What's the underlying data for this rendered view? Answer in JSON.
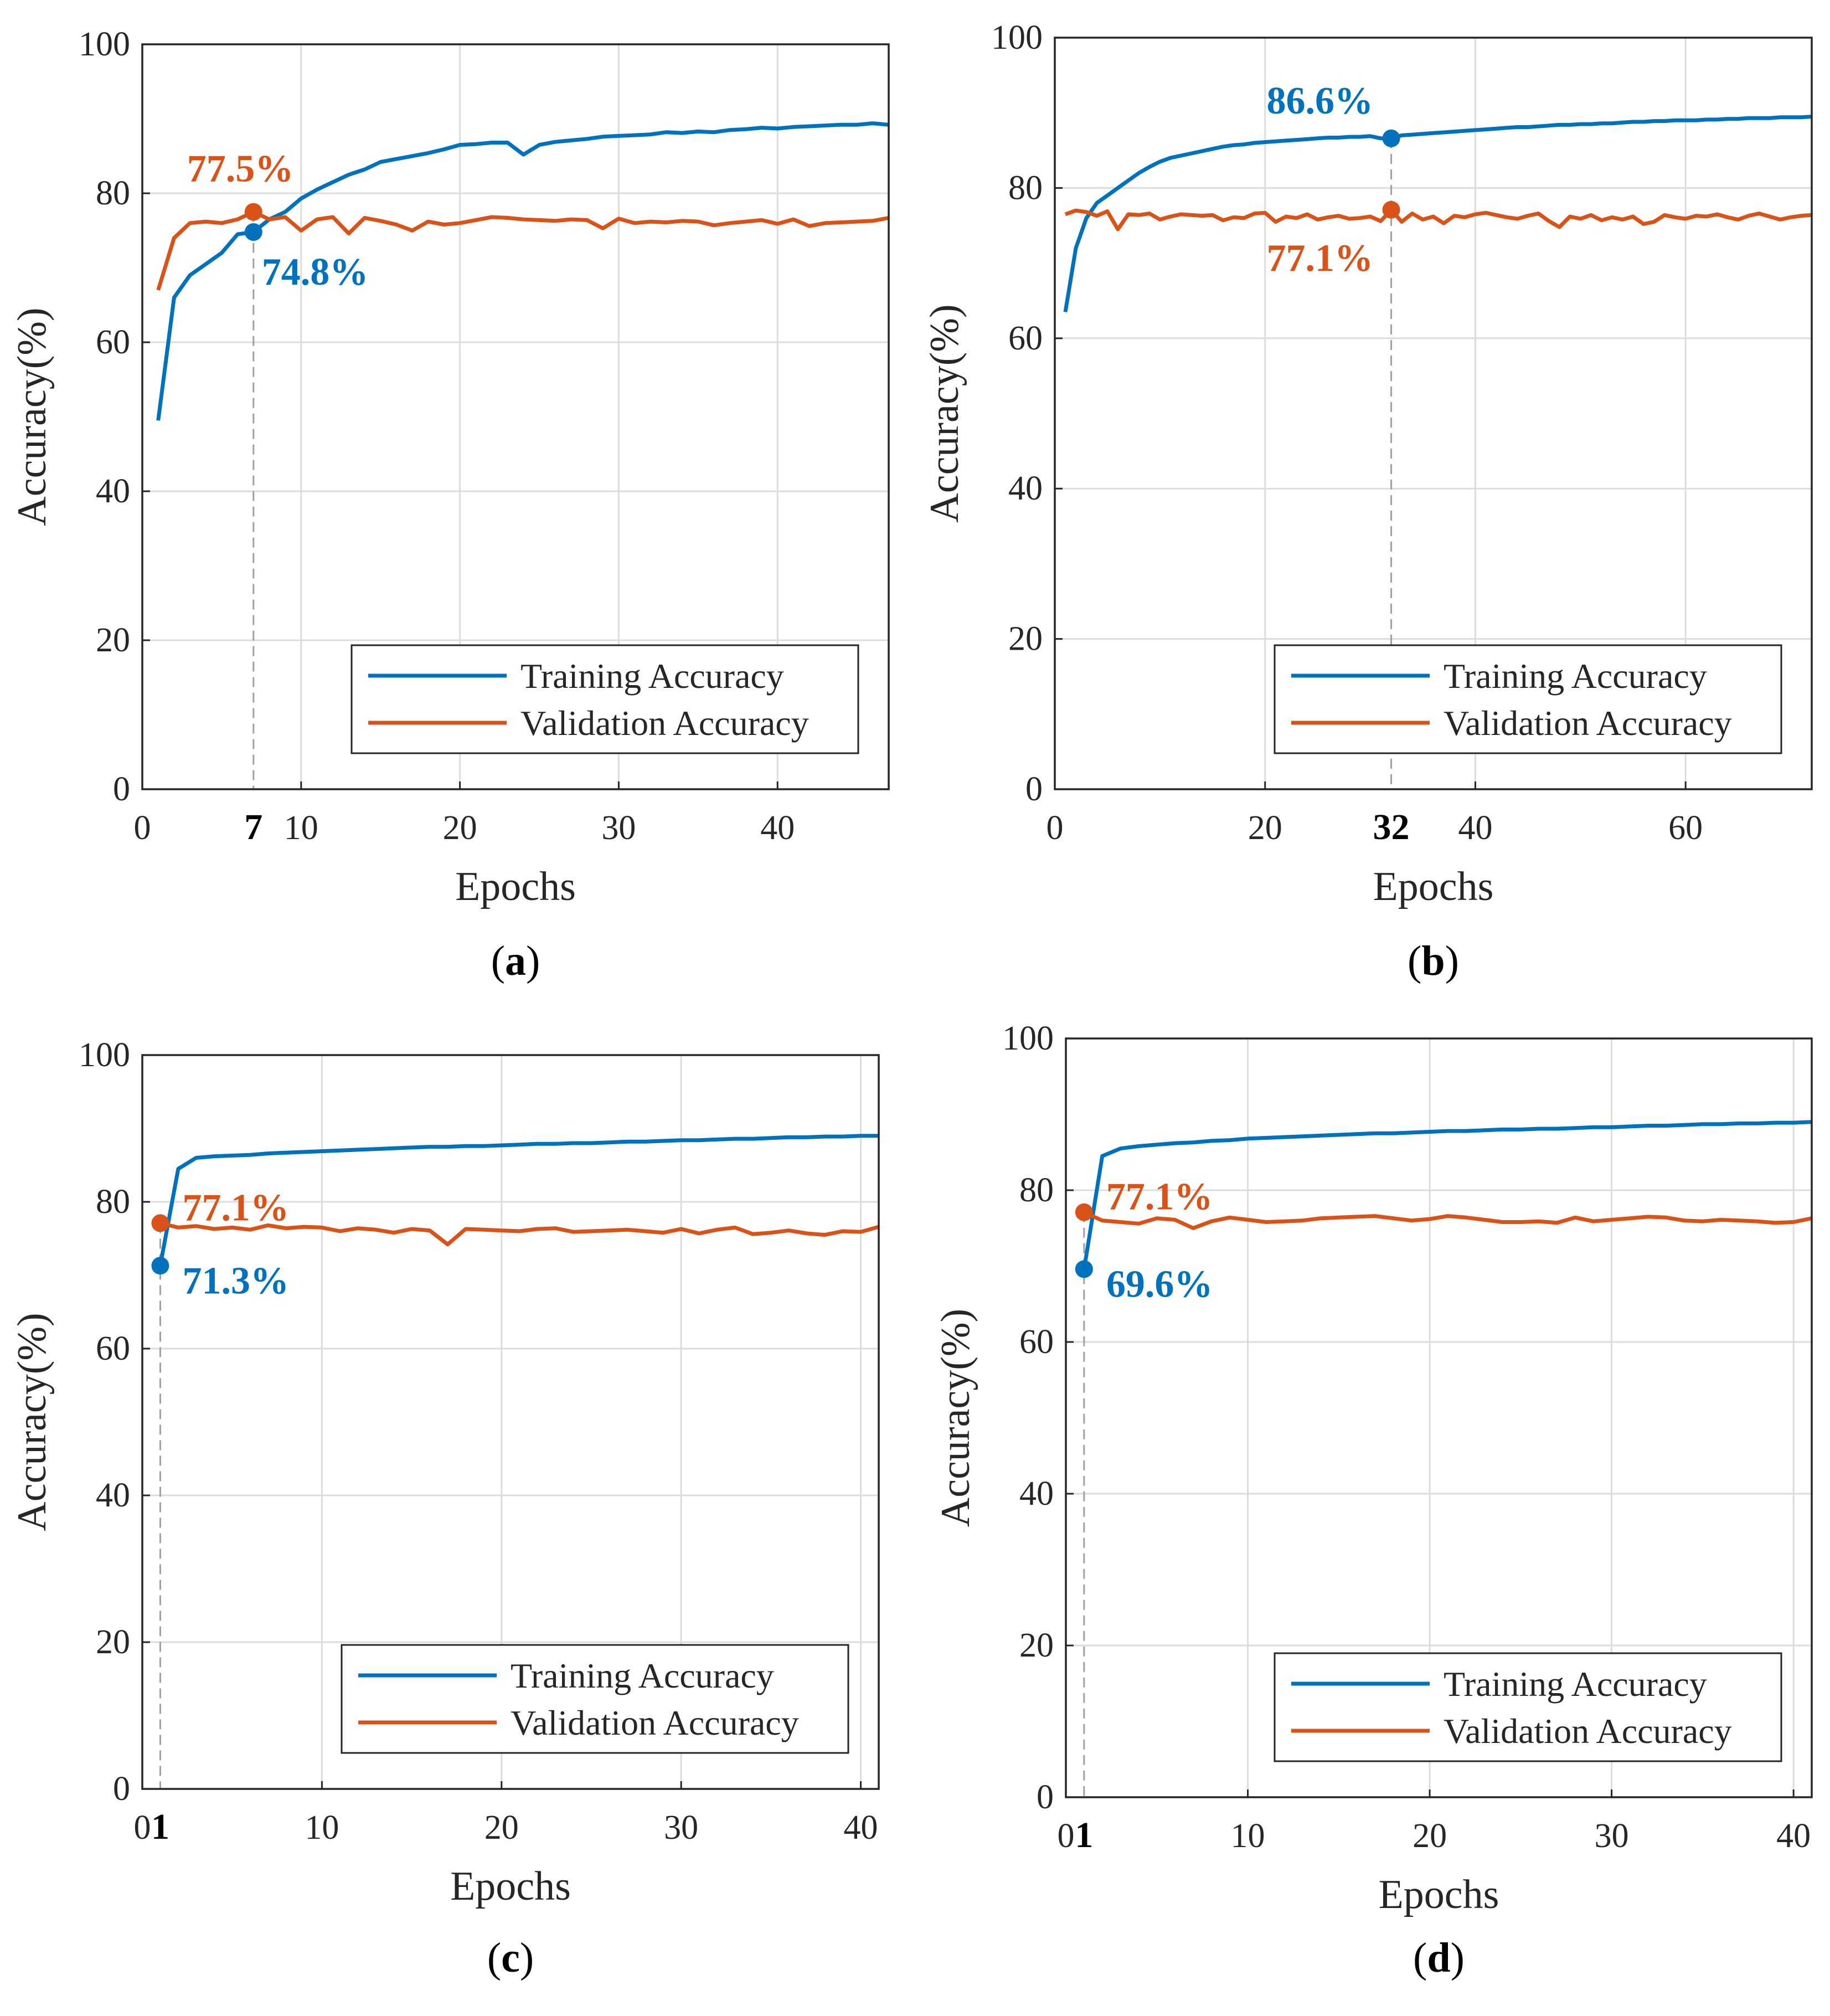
{
  "figure": {
    "colors": {
      "training": "#0072BD",
      "validation": "#D95319",
      "grid": "#DCDCDC",
      "axis": "#262626",
      "marker_line": "#A0A0A0"
    }
  },
  "chart_data": [
    {
      "type": "line",
      "panel_label": "a",
      "xlabel": "Epochs",
      "ylabel": "Accuracy(%)",
      "xlim": [
        0,
        47
      ],
      "ylim": [
        0,
        100
      ],
      "xticks": [
        0,
        10,
        20,
        30,
        40
      ],
      "yticks": [
        0,
        20,
        40,
        60,
        80,
        100
      ],
      "grid": true,
      "legend_position": "bottom-right",
      "highlight": {
        "epoch": 7,
        "epoch_label": "7",
        "training": {
          "value": 74.8,
          "label": "74.8%"
        },
        "validation": {
          "value": 77.5,
          "label": "77.5%"
        }
      },
      "series": [
        {
          "name": "Training Accuracy",
          "x": [
            1,
            2,
            3,
            4,
            5,
            6,
            7,
            8,
            9,
            10,
            11,
            12,
            13,
            14,
            15,
            16,
            17,
            18,
            19,
            20,
            21,
            22,
            23,
            24,
            25,
            26,
            27,
            28,
            29,
            30,
            31,
            32,
            33,
            34,
            35,
            36,
            37,
            38,
            39,
            40,
            41,
            42,
            43,
            44,
            45,
            46,
            47
          ],
          "values": [
            49.5,
            66,
            69,
            70.5,
            72,
            74.5,
            74.8,
            76.5,
            77.5,
            79.3,
            80.5,
            81.5,
            82.5,
            83.2,
            84.2,
            84.6,
            85,
            85.4,
            85.9,
            86.5,
            86.6,
            86.8,
            86.8,
            85.2,
            86.5,
            86.9,
            87.1,
            87.3,
            87.6,
            87.7,
            87.8,
            87.9,
            88.2,
            88.1,
            88.3,
            88.2,
            88.5,
            88.6,
            88.8,
            88.7,
            88.9,
            89,
            89.1,
            89.2,
            89.2,
            89.4,
            89.2
          ]
        },
        {
          "name": "Validation Accuracy",
          "x": [
            1,
            2,
            3,
            4,
            5,
            6,
            7,
            8,
            9,
            10,
            11,
            12,
            13,
            14,
            15,
            16,
            17,
            18,
            19,
            20,
            21,
            22,
            23,
            24,
            25,
            26,
            27,
            28,
            29,
            30,
            31,
            32,
            33,
            34,
            35,
            36,
            37,
            38,
            39,
            40,
            41,
            42,
            43,
            44,
            45,
            46,
            47
          ],
          "values": [
            67,
            74,
            76,
            76.2,
            76,
            76.5,
            77.5,
            76.5,
            76.8,
            75,
            76.5,
            76.8,
            74.6,
            76.7,
            76.3,
            75.8,
            75,
            76.2,
            75.8,
            76,
            76.4,
            76.8,
            76.7,
            76.5,
            76.4,
            76.3,
            76.5,
            76.4,
            75.3,
            76.6,
            76,
            76.2,
            76.1,
            76.3,
            76.2,
            75.7,
            76,
            76.2,
            76.4,
            75.9,
            76.5,
            75.6,
            76,
            76.1,
            76.2,
            76.3,
            76.7
          ]
        }
      ]
    },
    {
      "type": "line",
      "panel_label": "b",
      "xlabel": "Epochs",
      "ylabel": "Accuracy(%)",
      "xlim": [
        0,
        72
      ],
      "ylim": [
        0,
        100
      ],
      "xticks": [
        0,
        20,
        40,
        60
      ],
      "yticks": [
        0,
        20,
        40,
        60,
        80,
        100
      ],
      "grid": true,
      "legend_position": "bottom-right",
      "highlight": {
        "epoch": 32,
        "epoch_label": "32",
        "training": {
          "value": 86.6,
          "label": "86.6%"
        },
        "validation": {
          "value": 77.1,
          "label": "77.1%"
        }
      },
      "series": [
        {
          "name": "Training Accuracy",
          "x": [
            1,
            2,
            3,
            4,
            5,
            6,
            7,
            8,
            9,
            10,
            11,
            12,
            13,
            14,
            15,
            16,
            17,
            18,
            19,
            20,
            21,
            22,
            23,
            24,
            25,
            26,
            27,
            28,
            29,
            30,
            31,
            32,
            33,
            34,
            35,
            36,
            37,
            38,
            39,
            40,
            41,
            42,
            43,
            44,
            45,
            46,
            47,
            48,
            49,
            50,
            51,
            52,
            53,
            54,
            55,
            56,
            57,
            58,
            59,
            60,
            61,
            62,
            63,
            64,
            65,
            66,
            67,
            68,
            69,
            70,
            71,
            72
          ],
          "values": [
            63.5,
            72,
            76,
            78,
            79,
            80,
            81,
            82,
            82.8,
            83.5,
            84,
            84.3,
            84.6,
            84.9,
            85.2,
            85.5,
            85.7,
            85.8,
            86,
            86.1,
            86.2,
            86.3,
            86.4,
            86.5,
            86.6,
            86.7,
            86.7,
            86.8,
            86.8,
            86.9,
            86.6,
            86.6,
            87,
            87.1,
            87.2,
            87.3,
            87.4,
            87.5,
            87.6,
            87.7,
            87.8,
            87.9,
            88,
            88.1,
            88.1,
            88.2,
            88.3,
            88.4,
            88.4,
            88.5,
            88.5,
            88.6,
            88.6,
            88.7,
            88.8,
            88.8,
            88.9,
            88.9,
            89,
            89,
            89,
            89.1,
            89.1,
            89.2,
            89.2,
            89.3,
            89.3,
            89.3,
            89.4,
            89.4,
            89.4,
            89.5
          ]
        },
        {
          "name": "Validation Accuracy",
          "x": [
            1,
            2,
            3,
            4,
            5,
            6,
            7,
            8,
            9,
            10,
            11,
            12,
            13,
            14,
            15,
            16,
            17,
            18,
            19,
            20,
            21,
            22,
            23,
            24,
            25,
            26,
            27,
            28,
            29,
            30,
            31,
            32,
            33,
            34,
            35,
            36,
            37,
            38,
            39,
            40,
            41,
            42,
            43,
            44,
            45,
            46,
            47,
            48,
            49,
            50,
            51,
            52,
            53,
            54,
            55,
            56,
            57,
            58,
            59,
            60,
            61,
            62,
            63,
            64,
            65,
            66,
            67,
            68,
            69,
            70,
            71,
            72
          ],
          "values": [
            76.5,
            77,
            76.8,
            76.3,
            76.9,
            74.5,
            76.5,
            76.4,
            76.6,
            75.8,
            76.2,
            76.5,
            76.4,
            76.3,
            76.4,
            75.7,
            76.1,
            76,
            76.6,
            76.7,
            75.5,
            76.2,
            76,
            76.5,
            75.8,
            76.1,
            76.3,
            75.9,
            76,
            76.2,
            75.6,
            77.1,
            75.5,
            76.6,
            75.8,
            76.2,
            75.3,
            76.3,
            76.1,
            76.5,
            76.7,
            76.4,
            76.1,
            75.9,
            76.3,
            76.6,
            75.6,
            74.8,
            76.2,
            75.9,
            76.4,
            75.7,
            76.1,
            75.8,
            76.2,
            75.2,
            75.5,
            76.4,
            76.1,
            75.9,
            76.3,
            76.2,
            76.5,
            76.1,
            75.8,
            76.3,
            76.6,
            76.2,
            75.8,
            76.1,
            76.3,
            76.4
          ]
        }
      ]
    },
    {
      "type": "line",
      "panel_label": "c",
      "xlabel": "Epochs",
      "ylabel": "Accuracy(%)",
      "xlim": [
        0,
        41
      ],
      "ylim": [
        0,
        100
      ],
      "xticks": [
        0,
        10,
        20,
        30,
        40
      ],
      "yticks": [
        0,
        20,
        40,
        60,
        80,
        100
      ],
      "grid": true,
      "legend_position": "bottom-right",
      "highlight": {
        "epoch": 1,
        "epoch_label": "1",
        "training": {
          "value": 71.3,
          "label": "71.3%"
        },
        "validation": {
          "value": 77.1,
          "label": "77.1%"
        }
      },
      "series": [
        {
          "name": "Training Accuracy",
          "x": [
            1,
            2,
            3,
            4,
            5,
            6,
            7,
            8,
            9,
            10,
            11,
            12,
            13,
            14,
            15,
            16,
            17,
            18,
            19,
            20,
            21,
            22,
            23,
            24,
            25,
            26,
            27,
            28,
            29,
            30,
            31,
            32,
            33,
            34,
            35,
            36,
            37,
            38,
            39,
            40,
            41
          ],
          "values": [
            71.3,
            84.5,
            86,
            86.2,
            86.3,
            86.4,
            86.6,
            86.7,
            86.8,
            86.9,
            87,
            87.1,
            87.2,
            87.3,
            87.4,
            87.5,
            87.5,
            87.6,
            87.6,
            87.7,
            87.8,
            87.9,
            87.9,
            88,
            88,
            88.1,
            88.2,
            88.2,
            88.3,
            88.4,
            88.4,
            88.5,
            88.6,
            88.6,
            88.7,
            88.8,
            88.8,
            88.9,
            88.9,
            89,
            89
          ]
        },
        {
          "name": "Validation Accuracy",
          "x": [
            1,
            2,
            3,
            4,
            5,
            6,
            7,
            8,
            9,
            10,
            11,
            12,
            13,
            14,
            15,
            16,
            17,
            18,
            19,
            20,
            21,
            22,
            23,
            24,
            25,
            26,
            27,
            28,
            29,
            30,
            31,
            32,
            33,
            34,
            35,
            36,
            37,
            38,
            39,
            40,
            41
          ],
          "values": [
            77.1,
            76.5,
            76.7,
            76.3,
            76.5,
            76.2,
            76.8,
            76.4,
            76.6,
            76.5,
            76,
            76.4,
            76.2,
            75.8,
            76.3,
            76.1,
            74.2,
            76.3,
            76.2,
            76.1,
            76,
            76.3,
            76.4,
            75.9,
            76,
            76.1,
            76.2,
            76,
            75.8,
            76.3,
            75.7,
            76.2,
            76.5,
            75.6,
            75.8,
            76.1,
            75.7,
            75.5,
            76,
            75.9,
            76.6
          ]
        }
      ]
    },
    {
      "type": "line",
      "panel_label": "d",
      "xlabel": "Epochs",
      "ylabel": "Accuracy(%)",
      "xlim": [
        0,
        41
      ],
      "ylim": [
        0,
        100
      ],
      "xticks": [
        0,
        10,
        20,
        30,
        40
      ],
      "yticks": [
        0,
        20,
        40,
        60,
        80,
        100
      ],
      "grid": true,
      "legend_position": "bottom-right",
      "highlight": {
        "epoch": 1,
        "epoch_label": "1",
        "training": {
          "value": 69.6,
          "label": "69.6%"
        },
        "validation": {
          "value": 77.1,
          "label": "77.1%"
        }
      },
      "series": [
        {
          "name": "Training Accuracy",
          "x": [
            1,
            2,
            3,
            4,
            5,
            6,
            7,
            8,
            9,
            10,
            11,
            12,
            13,
            14,
            15,
            16,
            17,
            18,
            19,
            20,
            21,
            22,
            23,
            24,
            25,
            26,
            27,
            28,
            29,
            30,
            31,
            32,
            33,
            34,
            35,
            36,
            37,
            38,
            39,
            40,
            41
          ],
          "values": [
            69.6,
            84.5,
            85.5,
            85.8,
            86,
            86.2,
            86.3,
            86.5,
            86.6,
            86.8,
            86.9,
            87,
            87.1,
            87.2,
            87.3,
            87.4,
            87.5,
            87.5,
            87.6,
            87.7,
            87.8,
            87.8,
            87.9,
            88,
            88,
            88.1,
            88.1,
            88.2,
            88.3,
            88.3,
            88.4,
            88.5,
            88.5,
            88.6,
            88.7,
            88.7,
            88.8,
            88.8,
            88.9,
            88.9,
            89
          ]
        },
        {
          "name": "Validation Accuracy",
          "x": [
            1,
            2,
            3,
            4,
            5,
            6,
            7,
            8,
            9,
            10,
            11,
            12,
            13,
            14,
            15,
            16,
            17,
            18,
            19,
            20,
            21,
            22,
            23,
            24,
            25,
            26,
            27,
            28,
            29,
            30,
            31,
            32,
            33,
            34,
            35,
            36,
            37,
            38,
            39,
            40,
            41
          ],
          "values": [
            77.1,
            76,
            75.8,
            75.6,
            76.3,
            76.1,
            75,
            75.9,
            76.4,
            76.1,
            75.8,
            75.9,
            76,
            76.3,
            76.4,
            76.5,
            76.6,
            76.3,
            76,
            76.2,
            76.6,
            76.4,
            76.1,
            75.8,
            75.8,
            75.9,
            75.7,
            76.4,
            75.9,
            76.1,
            76.3,
            76.5,
            76.4,
            76,
            75.9,
            76.1,
            76,
            75.9,
            75.7,
            75.8,
            76.3
          ]
        }
      ]
    }
  ]
}
